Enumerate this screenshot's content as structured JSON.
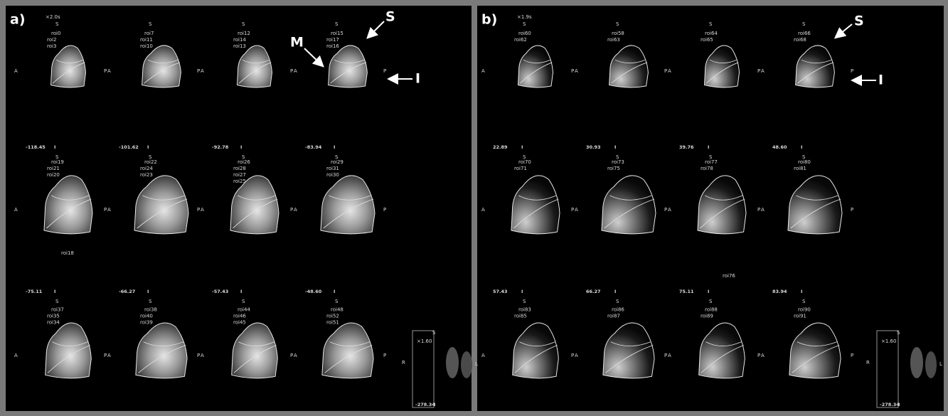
{
  "orientation": {
    "superior": "S",
    "inferior": "I",
    "anterior": "A",
    "posterior": "P",
    "right": "R",
    "left": "L"
  },
  "panels": [
    {
      "label": "a)",
      "scale_note": "×2.0s",
      "arrows": [
        {
          "text": "S"
        },
        {
          "text": "M"
        },
        {
          "text": "I"
        }
      ],
      "slices": [
        {
          "rois": [
            "roi0",
            "roi2",
            "roi3"
          ]
        },
        {
          "rois": [
            "roi7",
            "roi11",
            "roi10"
          ]
        },
        {
          "rois": [
            "roi12",
            "roi14",
            "roi13"
          ]
        },
        {
          "rois": [
            "roi15",
            "roi17",
            "roi16"
          ]
        },
        {
          "number": "-118.45",
          "rois": [
            "roi19",
            "roi21",
            "roi20"
          ]
        },
        {
          "number": "-101.62",
          "rois": [
            "roi22",
            "roi24",
            "roi23"
          ]
        },
        {
          "number": "-92.78",
          "rois": [
            "roi26",
            "roi28",
            "roi27",
            "roi25"
          ]
        },
        {
          "number": "-83.94",
          "rois": [
            "roi29",
            "roi31",
            "roi30"
          ]
        },
        {
          "number": "-75.11",
          "rois": [
            "roi37",
            "roi35",
            "roi34"
          ]
        },
        {
          "number": "-66.27",
          "rois": [
            "roi38",
            "roi40",
            "roi39"
          ]
        },
        {
          "number": "-57.43",
          "rois": [
            "roi44",
            "roi46",
            "roi45"
          ]
        },
        {
          "number": "-48.60",
          "rois": [
            "roi48",
            "roi52",
            "roi51"
          ]
        }
      ],
      "extra_roi": "roi18",
      "inset": {
        "zoom": "×1.60",
        "depth": "-278.34"
      }
    },
    {
      "label": "b)",
      "scale_note": "×1.9s",
      "arrows": [
        {
          "text": "S"
        },
        {
          "text": "I"
        }
      ],
      "slices": [
        {
          "rois": [
            "roi60",
            "roi62"
          ]
        },
        {
          "rois": [
            "roi58",
            "roi63"
          ]
        },
        {
          "rois": [
            "roi64",
            "roi65"
          ]
        },
        {
          "rois": [
            "roi66",
            "roi68"
          ]
        },
        {
          "number": "22.89",
          "rois": [
            "roi70",
            "roi71"
          ]
        },
        {
          "number": "30.93",
          "rois": [
            "roi73",
            "roi75"
          ]
        },
        {
          "number": "39.76",
          "rois": [
            "roi77",
            "roi78"
          ]
        },
        {
          "number": "48.60",
          "rois": [
            "roi80",
            "roi81"
          ]
        },
        {
          "number": "57.43",
          "rois": [
            "roi83",
            "roi85"
          ]
        },
        {
          "number": "66.27",
          "rois": [
            "roi86",
            "roi87"
          ]
        },
        {
          "number": "75.11",
          "rois": [
            "roi88",
            "roi89"
          ]
        },
        {
          "number": "83.94",
          "rois": [
            "roi90",
            "roi91"
          ]
        }
      ],
      "extra_roi": "roi76",
      "inset": {
        "zoom": "×1.60",
        "depth": "-278.34"
      }
    }
  ]
}
